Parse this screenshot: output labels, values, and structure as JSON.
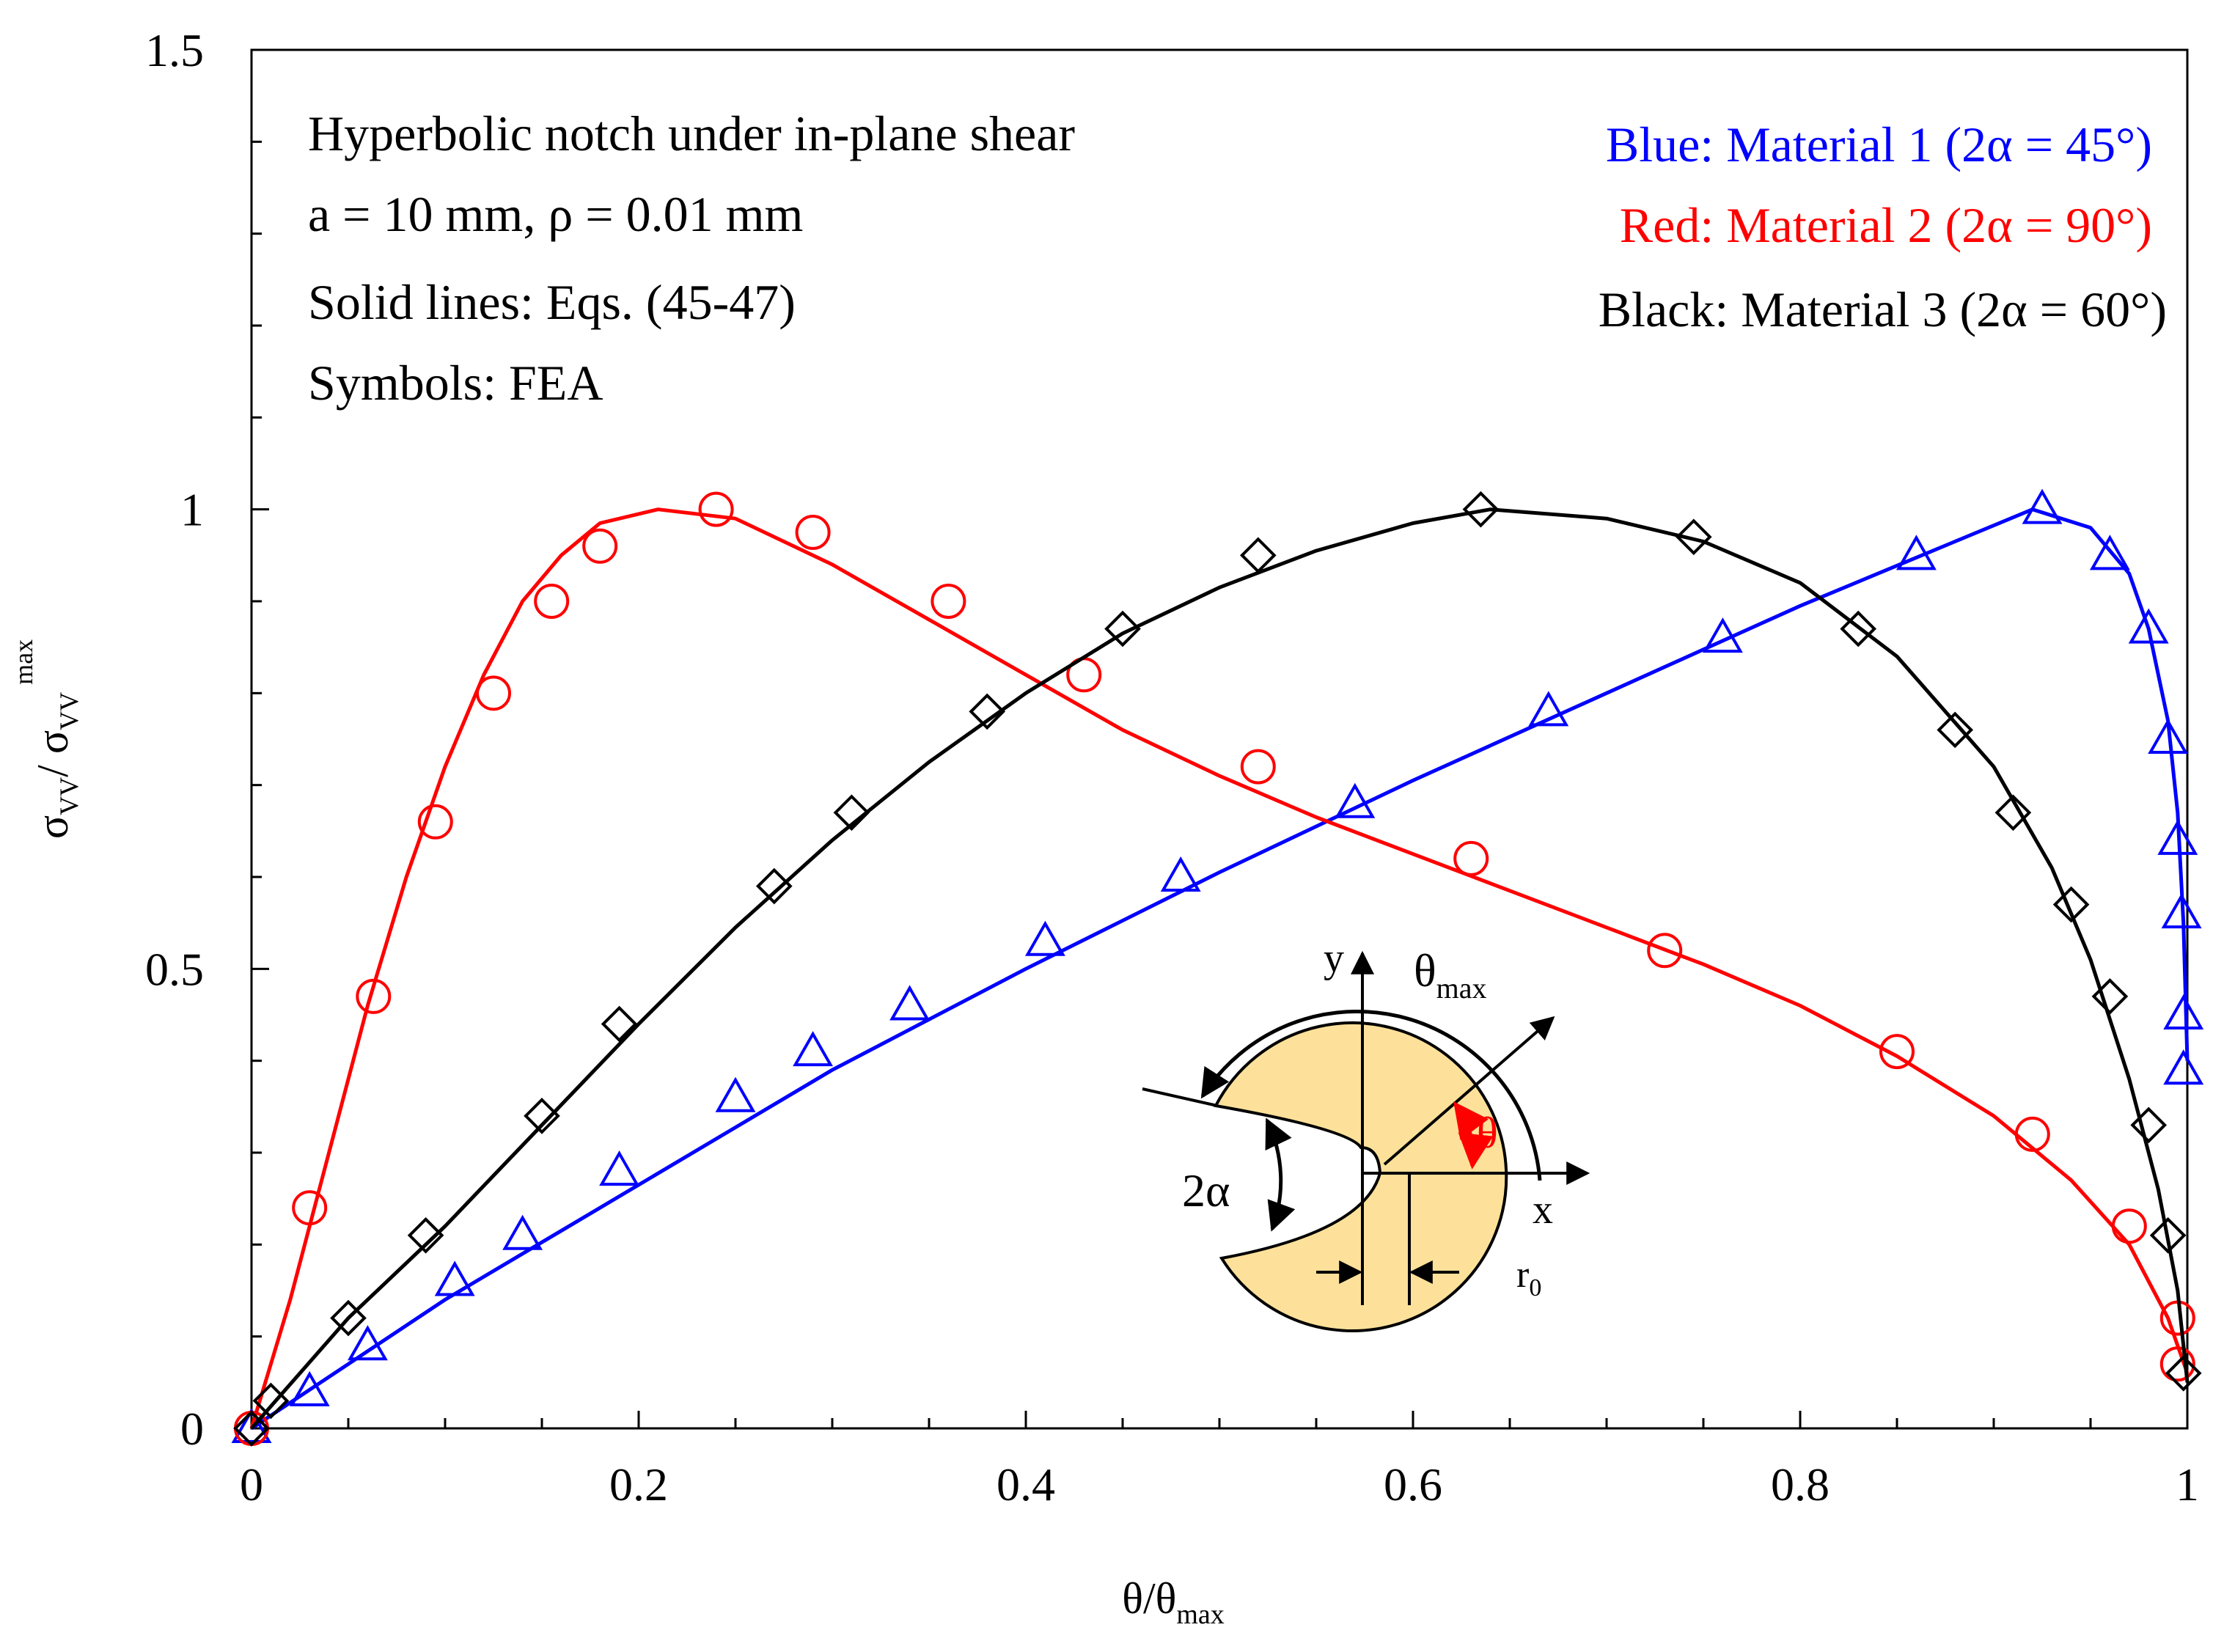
{
  "chart_data": {
    "type": "line",
    "xlabel_base": "θ/θ",
    "xlabel_sub": "max",
    "ylabel_sigma": "σ",
    "ylabel_sub": "VV",
    "ylabel_slash": "/ ",
    "ylabel_sup": "max",
    "xlim": [
      0,
      1
    ],
    "ylim": [
      0,
      1.5
    ],
    "xticks": [
      0,
      0.2,
      0.4,
      0.6,
      0.8,
      1
    ],
    "xtick_labels": [
      "0",
      "0.2",
      "0.4",
      "0.6",
      "0.8",
      "1"
    ],
    "yticks": [
      0,
      0.5,
      1,
      1.5
    ],
    "ytick_labels": [
      "0",
      "0.5",
      "1",
      "1.5"
    ],
    "annotations_left": [
      "Hyperbolic notch under in-plane shear",
      "a = 10 mm, ρ = 0.01 mm",
      "Solid lines: Eqs. (45-47)",
      "Symbols: FEA"
    ],
    "legend_right": [
      "Blue: Material 1 (2α = 45°)",
      "Red: Material 2 (2α = 90°)",
      "Black: Material 3 (2α = 60°)"
    ],
    "series": [
      {
        "name": "Material 1 (2α = 45°)",
        "color": "#0000ff",
        "marker": "triangle",
        "line": [
          [
            0,
            0
          ],
          [
            0.05,
            0.07
          ],
          [
            0.1,
            0.14
          ],
          [
            0.2,
            0.265
          ],
          [
            0.3,
            0.39
          ],
          [
            0.4,
            0.5
          ],
          [
            0.5,
            0.605
          ],
          [
            0.6,
            0.705
          ],
          [
            0.7,
            0.8
          ],
          [
            0.8,
            0.895
          ],
          [
            0.88,
            0.965
          ],
          [
            0.92,
            1.0
          ],
          [
            0.95,
            0.98
          ],
          [
            0.97,
            0.93
          ],
          [
            0.98,
            0.87
          ],
          [
            0.99,
            0.77
          ],
          [
            0.995,
            0.67
          ],
          [
            0.998,
            0.55
          ],
          [
            1.0,
            0.4
          ]
        ],
        "points": [
          [
            0,
            0
          ],
          [
            0.03,
            0.04
          ],
          [
            0.06,
            0.09
          ],
          [
            0.105,
            0.16
          ],
          [
            0.14,
            0.21
          ],
          [
            0.19,
            0.28
          ],
          [
            0.25,
            0.36
          ],
          [
            0.29,
            0.41
          ],
          [
            0.34,
            0.46
          ],
          [
            0.41,
            0.53
          ],
          [
            0.48,
            0.6
          ],
          [
            0.57,
            0.68
          ],
          [
            0.67,
            0.78
          ],
          [
            0.76,
            0.86
          ],
          [
            0.86,
            0.95
          ],
          [
            0.925,
            1.0
          ],
          [
            0.96,
            0.95
          ],
          [
            0.98,
            0.87
          ],
          [
            0.99,
            0.75
          ],
          [
            0.995,
            0.64
          ],
          [
            0.997,
            0.56
          ],
          [
            0.998,
            0.45
          ],
          [
            0.998,
            0.39
          ]
        ]
      },
      {
        "name": "Material 2 (2α = 90°)",
        "color": "#ff0000",
        "marker": "circle",
        "line": [
          [
            0,
            0
          ],
          [
            0.02,
            0.14
          ],
          [
            0.04,
            0.3
          ],
          [
            0.06,
            0.46
          ],
          [
            0.08,
            0.6
          ],
          [
            0.1,
            0.72
          ],
          [
            0.12,
            0.82
          ],
          [
            0.14,
            0.9
          ],
          [
            0.16,
            0.95
          ],
          [
            0.18,
            0.985
          ],
          [
            0.21,
            1.0
          ],
          [
            0.25,
            0.99
          ],
          [
            0.3,
            0.94
          ],
          [
            0.35,
            0.88
          ],
          [
            0.4,
            0.82
          ],
          [
            0.45,
            0.76
          ],
          [
            0.5,
            0.71
          ],
          [
            0.55,
            0.665
          ],
          [
            0.6,
            0.625
          ],
          [
            0.65,
            0.585
          ],
          [
            0.7,
            0.545
          ],
          [
            0.75,
            0.505
          ],
          [
            0.8,
            0.46
          ],
          [
            0.85,
            0.405
          ],
          [
            0.9,
            0.34
          ],
          [
            0.94,
            0.27
          ],
          [
            0.97,
            0.2
          ],
          [
            0.99,
            0.12
          ],
          [
            1.0,
            0.06
          ]
        ],
        "points": [
          [
            0,
            0
          ],
          [
            0.03,
            0.24
          ],
          [
            0.063,
            0.47
          ],
          [
            0.095,
            0.66
          ],
          [
            0.125,
            0.8
          ],
          [
            0.155,
            0.9
          ],
          [
            0.18,
            0.96
          ],
          [
            0.24,
            1.0
          ],
          [
            0.29,
            0.975
          ],
          [
            0.36,
            0.9
          ],
          [
            0.43,
            0.82
          ],
          [
            0.52,
            0.72
          ],
          [
            0.63,
            0.62
          ],
          [
            0.73,
            0.52
          ],
          [
            0.85,
            0.41
          ],
          [
            0.92,
            0.32
          ],
          [
            0.97,
            0.22
          ],
          [
            0.995,
            0.12
          ],
          [
            0.995,
            0.07
          ]
        ]
      },
      {
        "name": "Material 3 (2α = 60°)",
        "color": "#000000",
        "marker": "diamond",
        "line": [
          [
            0,
            0
          ],
          [
            0.05,
            0.12
          ],
          [
            0.1,
            0.22
          ],
          [
            0.15,
            0.33
          ],
          [
            0.2,
            0.44
          ],
          [
            0.25,
            0.545
          ],
          [
            0.3,
            0.64
          ],
          [
            0.35,
            0.725
          ],
          [
            0.4,
            0.8
          ],
          [
            0.45,
            0.865
          ],
          [
            0.5,
            0.915
          ],
          [
            0.55,
            0.955
          ],
          [
            0.6,
            0.985
          ],
          [
            0.64,
            1.0
          ],
          [
            0.7,
            0.99
          ],
          [
            0.75,
            0.965
          ],
          [
            0.8,
            0.92
          ],
          [
            0.85,
            0.84
          ],
          [
            0.9,
            0.72
          ],
          [
            0.93,
            0.61
          ],
          [
            0.95,
            0.51
          ],
          [
            0.97,
            0.38
          ],
          [
            0.985,
            0.26
          ],
          [
            0.995,
            0.15
          ],
          [
            1.0,
            0.05
          ]
        ],
        "points": [
          [
            0,
            0
          ],
          [
            0.01,
            0.03
          ],
          [
            0.05,
            0.12
          ],
          [
            0.09,
            0.21
          ],
          [
            0.15,
            0.34
          ],
          [
            0.19,
            0.44
          ],
          [
            0.27,
            0.59
          ],
          [
            0.31,
            0.67
          ],
          [
            0.38,
            0.78
          ],
          [
            0.45,
            0.87
          ],
          [
            0.52,
            0.95
          ],
          [
            0.635,
            1.0
          ],
          [
            0.745,
            0.97
          ],
          [
            0.83,
            0.87
          ],
          [
            0.88,
            0.76
          ],
          [
            0.91,
            0.67
          ],
          [
            0.94,
            0.57
          ],
          [
            0.96,
            0.47
          ],
          [
            0.98,
            0.33
          ],
          [
            0.99,
            0.21
          ],
          [
            0.998,
            0.06
          ]
        ]
      }
    ]
  },
  "inset": {
    "label_y": "y",
    "label_x": "x",
    "label_theta_max_base": "θ",
    "label_theta_max_sub": "max",
    "label_theta": "θ",
    "label_two_alpha": "2α",
    "label_r0_base": "r",
    "label_r0_sub": "0",
    "fill_color": "#fde19a"
  }
}
